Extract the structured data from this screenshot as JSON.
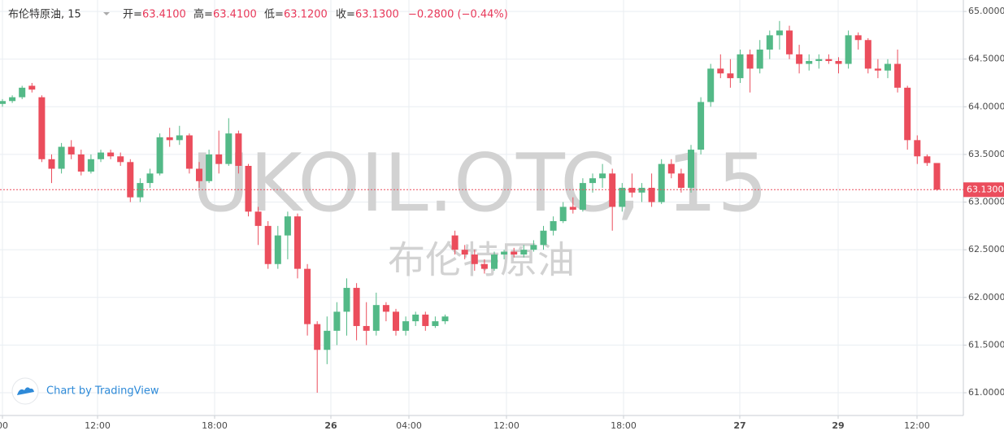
{
  "header": {
    "symbol": "布伦特原油, 15",
    "open_label": "开=",
    "open": "63.4100",
    "high_label": "高=",
    "high": "63.4100",
    "low_label": "低=",
    "low": "63.1200",
    "close_label": "收=",
    "close": "63.1300",
    "change": "−0.2800 (−0.44%)"
  },
  "watermark": {
    "ticker": "UKOIL.OTC, 15",
    "name": "布伦特原油"
  },
  "branding": "Chart by TradingView",
  "chart_data": {
    "type": "candlestick",
    "colors": {
      "up": "#53b987",
      "down": "#eb4d5c"
    },
    "ylim": [
      60.77,
      65.12
    ],
    "yticks": [
      {
        "value": 61.0,
        "label": "61.0000"
      },
      {
        "value": 61.5,
        "label": "61.5000"
      },
      {
        "value": 62.0,
        "label": "62.0000"
      },
      {
        "value": 62.5,
        "label": "62.5000"
      },
      {
        "value": 63.0,
        "label": "63.0000"
      },
      {
        "value": 63.5,
        "label": "63.5000"
      },
      {
        "value": 64.0,
        "label": "64.0000"
      },
      {
        "value": 64.5,
        "label": "64.5000"
      },
      {
        "value": 65.0,
        "label": "65.0000"
      }
    ],
    "xtick_labels": [
      "00",
      "12:00",
      "18:00",
      "26",
      "04:00",
      "12:00",
      "18:00",
      "27",
      "29",
      "12:00"
    ],
    "grid": true,
    "last_price": {
      "value": 63.13,
      "label": "63.1300"
    },
    "candles": [
      [
        64.03,
        64.08,
        64.0,
        64.06
      ],
      [
        64.06,
        64.12,
        64.04,
        64.1
      ],
      [
        64.1,
        64.22,
        64.08,
        64.2
      ],
      [
        64.22,
        64.25,
        64.15,
        64.18
      ],
      [
        64.1,
        64.12,
        63.42,
        63.45
      ],
      [
        63.45,
        63.5,
        63.2,
        63.35
      ],
      [
        63.35,
        63.62,
        63.3,
        63.58
      ],
      [
        63.58,
        63.65,
        63.45,
        63.5
      ],
      [
        63.5,
        63.55,
        63.28,
        63.32
      ],
      [
        63.32,
        63.5,
        63.3,
        63.45
      ],
      [
        63.45,
        63.55,
        63.42,
        63.52
      ],
      [
        63.52,
        63.55,
        63.45,
        63.48
      ],
      [
        63.48,
        63.52,
        63.38,
        63.42
      ],
      [
        63.42,
        63.45,
        63.0,
        63.05
      ],
      [
        63.05,
        63.25,
        63.0,
        63.2
      ],
      [
        63.2,
        63.35,
        63.15,
        63.3
      ],
      [
        63.3,
        63.72,
        63.28,
        63.68
      ],
      [
        63.68,
        63.78,
        63.58,
        63.65
      ],
      [
        63.65,
        63.8,
        63.6,
        63.7
      ],
      [
        63.7,
        63.72,
        63.3,
        63.35
      ],
      [
        63.35,
        63.42,
        63.15,
        63.22
      ],
      [
        63.22,
        63.55,
        63.2,
        63.5
      ],
      [
        63.5,
        63.75,
        63.3,
        63.4
      ],
      [
        63.4,
        63.88,
        63.38,
        63.72
      ],
      [
        63.72,
        63.75,
        63.3,
        63.38
      ],
      [
        63.38,
        63.4,
        62.85,
        62.9
      ],
      [
        62.9,
        62.95,
        62.55,
        62.75
      ],
      [
        62.75,
        62.8,
        62.3,
        62.35
      ],
      [
        62.35,
        62.75,
        62.3,
        62.65
      ],
      [
        62.65,
        62.9,
        62.4,
        62.85
      ],
      [
        62.85,
        62.88,
        62.2,
        62.3
      ],
      [
        62.3,
        62.35,
        61.6,
        61.72
      ],
      [
        61.72,
        61.75,
        61.0,
        61.45
      ],
      [
        61.45,
        61.8,
        61.3,
        61.65
      ],
      [
        61.65,
        61.95,
        61.5,
        61.85
      ],
      [
        61.85,
        62.2,
        61.6,
        62.1
      ],
      [
        62.1,
        62.15,
        61.55,
        61.7
      ],
      [
        61.7,
        61.95,
        61.5,
        61.65
      ],
      [
        61.65,
        62.05,
        61.6,
        61.92
      ],
      [
        61.92,
        61.95,
        61.75,
        61.85
      ],
      [
        61.85,
        61.88,
        61.6,
        61.65
      ],
      [
        61.65,
        61.8,
        61.6,
        61.75
      ],
      [
        61.75,
        61.85,
        61.7,
        61.82
      ],
      [
        61.82,
        61.85,
        61.65,
        61.7
      ],
      [
        61.7,
        61.8,
        61.68,
        61.75
      ],
      [
        61.75,
        61.82,
        61.72,
        61.8
      ],
      [
        62.65,
        62.7,
        62.45,
        62.5
      ],
      [
        62.5,
        62.55,
        62.4,
        62.45
      ],
      [
        62.45,
        62.5,
        62.28,
        62.35
      ],
      [
        62.35,
        62.4,
        62.25,
        62.3
      ],
      [
        62.3,
        62.48,
        62.28,
        62.45
      ],
      [
        62.45,
        62.5,
        62.4,
        62.48
      ],
      [
        62.48,
        62.52,
        62.42,
        62.45
      ],
      [
        62.45,
        62.55,
        62.42,
        62.5
      ],
      [
        62.5,
        62.6,
        62.48,
        62.55
      ],
      [
        62.55,
        62.75,
        62.5,
        62.7
      ],
      [
        62.7,
        62.85,
        62.65,
        62.8
      ],
      [
        62.8,
        63.0,
        62.78,
        62.95
      ],
      [
        62.95,
        63.05,
        62.88,
        62.92
      ],
      [
        62.92,
        63.25,
        62.9,
        63.2
      ],
      [
        63.2,
        63.3,
        63.1,
        63.25
      ],
      [
        63.25,
        63.4,
        63.15,
        63.3
      ],
      [
        63.3,
        63.35,
        62.7,
        62.95
      ],
      [
        62.95,
        63.2,
        62.9,
        63.15
      ],
      [
        63.15,
        63.3,
        63.05,
        63.1
      ],
      [
        63.1,
        63.2,
        63.0,
        63.15
      ],
      [
        63.15,
        63.3,
        62.95,
        63.0
      ],
      [
        63.0,
        63.45,
        62.98,
        63.4
      ],
      [
        63.4,
        63.45,
        63.25,
        63.3
      ],
      [
        63.3,
        63.35,
        63.1,
        63.15
      ],
      [
        63.15,
        63.6,
        63.1,
        63.55
      ],
      [
        63.55,
        64.1,
        63.5,
        64.05
      ],
      [
        64.05,
        64.45,
        64.0,
        64.4
      ],
      [
        64.4,
        64.55,
        64.3,
        64.35
      ],
      [
        64.35,
        64.5,
        64.2,
        64.3
      ],
      [
        64.3,
        64.6,
        64.25,
        64.55
      ],
      [
        64.55,
        64.6,
        64.15,
        64.4
      ],
      [
        64.4,
        64.7,
        64.35,
        64.6
      ],
      [
        64.6,
        64.8,
        64.5,
        64.75
      ],
      [
        64.75,
        64.9,
        64.6,
        64.8
      ],
      [
        64.8,
        64.85,
        64.5,
        64.55
      ],
      [
        64.55,
        64.65,
        64.35,
        64.45
      ],
      [
        64.45,
        64.55,
        64.38,
        64.48
      ],
      [
        64.48,
        64.55,
        64.4,
        64.5
      ],
      [
        64.5,
        64.55,
        64.45,
        64.48
      ],
      [
        64.48,
        64.52,
        64.35,
        64.45
      ],
      [
        64.45,
        64.8,
        64.4,
        64.75
      ],
      [
        64.75,
        64.78,
        64.6,
        64.7
      ],
      [
        64.7,
        64.72,
        64.35,
        64.4
      ],
      [
        64.4,
        64.5,
        64.3,
        64.38
      ],
      [
        64.38,
        64.5,
        64.3,
        64.45
      ],
      [
        64.45,
        64.6,
        64.15,
        64.2
      ],
      [
        64.2,
        64.22,
        63.55,
        63.65
      ],
      [
        63.65,
        63.7,
        63.4,
        63.48
      ],
      [
        63.48,
        63.5,
        63.38,
        63.41
      ],
      [
        63.41,
        63.41,
        63.12,
        63.13
      ]
    ]
  }
}
